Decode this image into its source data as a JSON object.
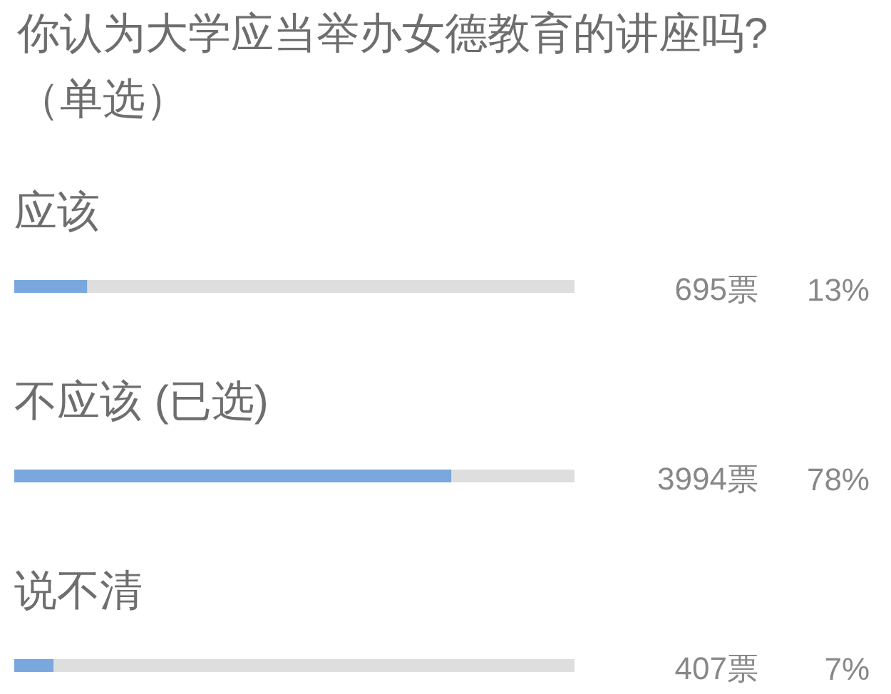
{
  "chart_data": {
    "type": "bar",
    "orientation": "horizontal",
    "title": "你认为大学应当举办女德教育的讲座吗?",
    "subtitle": "（单选）",
    "categories": [
      "应该",
      "不应该 (已选)",
      "说不清"
    ],
    "values": [
      13,
      78,
      7
    ],
    "color": "#7aa7de",
    "xlim": [
      0,
      100
    ],
    "value_labels": [
      "13%",
      "78%",
      "7%"
    ],
    "annotations": [
      "695票",
      "3994票",
      "407票"
    ],
    "tick_labels": "y"
  }
}
